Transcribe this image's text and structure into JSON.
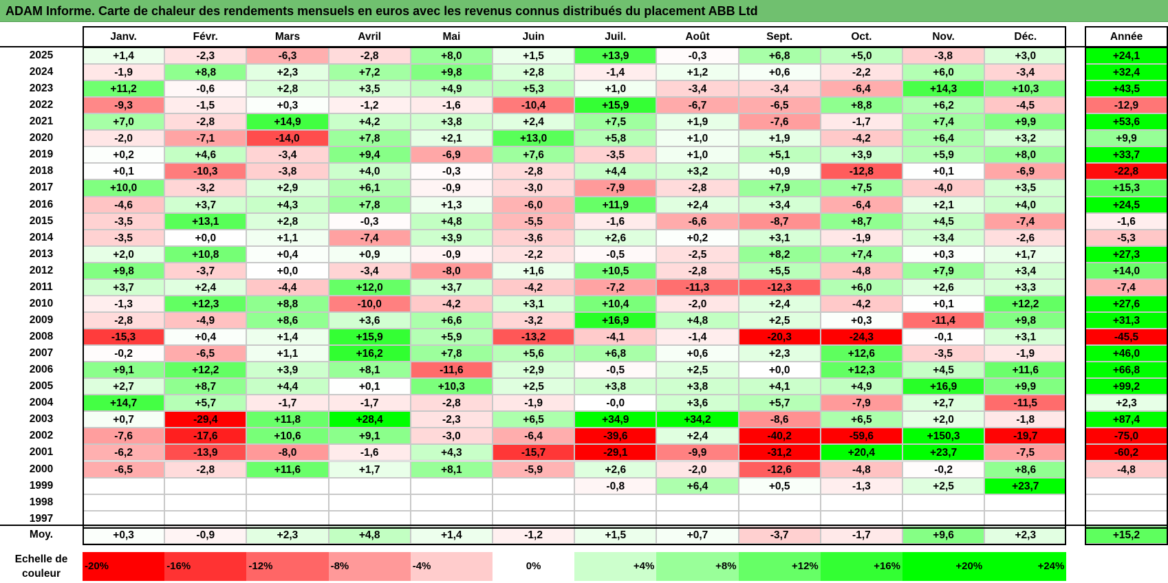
{
  "title": "ADAM Informe. Carte de chaleur des rendements mensuels en euros avec les revenus connus distribués du placement ABB Ltd",
  "chart_data": {
    "type": "heatmap",
    "title": "ADAM Informe. Carte de chaleur des rendements mensuels en euros avec les revenus connus distribués du placement ABB Ltd",
    "columns": [
      "Janv.",
      "Févr.",
      "Mars",
      "Avril",
      "Mai",
      "Juin",
      "Juil.",
      "Août",
      "Sept.",
      "Oct.",
      "Nov.",
      "Déc."
    ],
    "year_header": "Année",
    "rows": [
      {
        "label": "2025",
        "values": [
          1.4,
          -2.3,
          -6.3,
          -2.8,
          8.0,
          1.5,
          13.9,
          -0.3,
          6.8,
          5.0,
          -3.8,
          3.0
        ],
        "year": 24.1
      },
      {
        "label": "2024",
        "values": [
          -1.9,
          8.8,
          2.3,
          7.2,
          9.8,
          2.8,
          -1.4,
          1.2,
          0.6,
          -2.2,
          6.0,
          -3.4
        ],
        "year": 32.4
      },
      {
        "label": "2023",
        "values": [
          11.2,
          -0.6,
          2.8,
          3.5,
          4.9,
          5.3,
          1.0,
          -3.4,
          -3.4,
          -6.4,
          14.3,
          10.3
        ],
        "year": 43.5
      },
      {
        "label": "2022",
        "values": [
          -9.3,
          -1.5,
          0.3,
          -1.2,
          -1.6,
          -10.4,
          15.9,
          -6.7,
          -6.5,
          8.8,
          6.2,
          -4.5
        ],
        "year": -12.9
      },
      {
        "label": "2021",
        "values": [
          7.0,
          -2.8,
          14.9,
          4.2,
          3.8,
          2.4,
          7.5,
          1.9,
          -7.6,
          -1.7,
          7.4,
          9.9
        ],
        "year": 53.6
      },
      {
        "label": "2020",
        "values": [
          -2.0,
          -7.1,
          -14.0,
          7.8,
          2.1,
          13.0,
          5.8,
          1.0,
          1.9,
          -4.2,
          6.4,
          3.2
        ],
        "year": 9.9
      },
      {
        "label": "2019",
        "values": [
          0.2,
          4.6,
          -3.4,
          9.4,
          -6.9,
          7.6,
          -3.5,
          1.0,
          5.1,
          3.9,
          5.9,
          8.0
        ],
        "year": 33.7
      },
      {
        "label": "2018",
        "values": [
          0.1,
          -10.3,
          -3.8,
          4.0,
          -0.3,
          -2.8,
          4.4,
          3.2,
          0.9,
          -12.8,
          0.1,
          -6.9
        ],
        "year": -22.8
      },
      {
        "label": "2017",
        "values": [
          10.0,
          -3.2,
          2.9,
          6.1,
          -0.9,
          -3.0,
          -7.9,
          -2.8,
          7.9,
          7.5,
          -4.0,
          3.5
        ],
        "year": 15.3
      },
      {
        "label": "2016",
        "values": [
          -4.6,
          3.7,
          4.3,
          7.8,
          1.3,
          -6.0,
          11.9,
          2.4,
          3.4,
          -6.4,
          2.1,
          4.0
        ],
        "year": 24.5
      },
      {
        "label": "2015",
        "values": [
          -3.5,
          13.1,
          2.8,
          -0.3,
          4.8,
          -5.5,
          -1.6,
          -6.6,
          -8.7,
          8.7,
          4.5,
          -7.4
        ],
        "year": -1.6
      },
      {
        "label": "2014",
        "values": [
          -3.5,
          0.0,
          1.1,
          -7.4,
          3.9,
          -3.6,
          2.6,
          0.2,
          3.1,
          -1.9,
          3.4,
          -2.6
        ],
        "year": -5.3
      },
      {
        "label": "2013",
        "values": [
          2.0,
          10.8,
          0.4,
          0.9,
          -0.9,
          -2.2,
          -0.5,
          -2.5,
          8.2,
          7.4,
          0.3,
          1.7
        ],
        "year": 27.3
      },
      {
        "label": "2012",
        "values": [
          9.8,
          -3.7,
          0.0,
          -3.4,
          -8.0,
          1.6,
          10.5,
          -2.8,
          5.5,
          -4.8,
          7.9,
          3.4
        ],
        "year": 14.0
      },
      {
        "label": "2011",
        "values": [
          3.7,
          2.4,
          -4.4,
          12.0,
          3.7,
          -4.2,
          -7.2,
          -11.3,
          -12.3,
          6.0,
          2.6,
          3.3
        ],
        "year": -7.4
      },
      {
        "label": "2010",
        "values": [
          -1.3,
          12.3,
          8.8,
          -10.0,
          -4.2,
          3.1,
          10.4,
          -2.0,
          2.4,
          -4.2,
          0.1,
          12.2
        ],
        "year": 27.6
      },
      {
        "label": "2009",
        "values": [
          -2.8,
          -4.9,
          8.6,
          3.6,
          6.6,
          -3.2,
          16.9,
          4.8,
          2.5,
          0.3,
          -11.4,
          9.8
        ],
        "year": 31.3
      },
      {
        "label": "2008",
        "values": [
          -15.3,
          0.4,
          1.4,
          15.9,
          5.9,
          -13.2,
          -4.1,
          -1.4,
          -20.3,
          -24.3,
          -0.1,
          3.1
        ],
        "year": -45.5
      },
      {
        "label": "2007",
        "values": [
          -0.2,
          -6.5,
          1.1,
          16.2,
          7.8,
          5.6,
          6.8,
          0.6,
          2.3,
          12.6,
          -3.5,
          -1.9
        ],
        "year": 46.0
      },
      {
        "label": "2006",
        "values": [
          9.1,
          12.2,
          3.9,
          8.1,
          -11.6,
          2.9,
          -0.5,
          2.5,
          0.0,
          12.3,
          4.5,
          11.6
        ],
        "year": 66.8
      },
      {
        "label": "2005",
        "values": [
          2.7,
          8.7,
          4.4,
          0.1,
          10.3,
          2.5,
          3.8,
          3.8,
          4.1,
          4.9,
          16.9,
          9.9
        ],
        "year": 99.2
      },
      {
        "label": "2004",
        "values": [
          14.7,
          5.7,
          -1.7,
          -1.7,
          -2.8,
          -1.9,
          -0.0,
          3.6,
          5.7,
          -7.9,
          2.7,
          -11.5
        ],
        "year": 2.3
      },
      {
        "label": "2003",
        "values": [
          0.7,
          -29.4,
          11.8,
          28.4,
          -2.3,
          6.5,
          34.9,
          34.2,
          -8.6,
          6.5,
          2.0,
          -1.8
        ],
        "year": 87.4
      },
      {
        "label": "2002",
        "values": [
          -7.6,
          -17.6,
          10.6,
          9.1,
          -3.0,
          -6.4,
          -39.6,
          2.4,
          -40.2,
          -59.6,
          150.3,
          -19.7
        ],
        "year": -75.0
      },
      {
        "label": "2001",
        "values": [
          -6.2,
          -13.9,
          -8.0,
          -1.6,
          4.3,
          -15.7,
          -29.1,
          -9.9,
          -31.2,
          20.4,
          23.7,
          -7.5
        ],
        "year": -60.2
      },
      {
        "label": "2000",
        "values": [
          -6.5,
          -2.8,
          11.6,
          1.7,
          8.1,
          -5.9,
          2.6,
          -2.0,
          -12.6,
          -4.8,
          -0.2,
          8.6
        ],
        "year": -4.8
      },
      {
        "label": "1999",
        "values": [
          null,
          null,
          null,
          null,
          null,
          null,
          -0.8,
          6.4,
          0.5,
          -1.3,
          2.5,
          23.7
        ],
        "year": null
      },
      {
        "label": "1998",
        "values": [
          null,
          null,
          null,
          null,
          null,
          null,
          null,
          null,
          null,
          null,
          null,
          null
        ],
        "year": null
      },
      {
        "label": "1997",
        "values": [
          null,
          null,
          null,
          null,
          null,
          null,
          null,
          null,
          null,
          null,
          null,
          null
        ],
        "year": null
      }
    ],
    "average": {
      "label": "Moy.",
      "values": [
        0.3,
        -0.9,
        2.3,
        4.8,
        1.4,
        -1.2,
        1.5,
        0.7,
        -3.7,
        -1.7,
        9.6,
        2.3
      ],
      "year": 15.2
    },
    "scale": {
      "label": "Echelle de couleur",
      "steps": [
        {
          "label": "-20%",
          "color": "#ff0000"
        },
        {
          "label": "-16%",
          "color": "#ff3333"
        },
        {
          "label": "-12%",
          "color": "#ff6666"
        },
        {
          "label": "-8%",
          "color": "#ff9999"
        },
        {
          "label": "-4%",
          "color": "#ffcccc"
        },
        {
          "label": "0%",
          "color": "#ffffff"
        },
        {
          "label": "+4%",
          "color": "#ccffcc"
        },
        {
          "label": "+8%",
          "color": "#99ff99"
        },
        {
          "label": "+12%",
          "color": "#66ff66"
        },
        {
          "label": "+16%",
          "color": "#33ff33"
        },
        {
          "label": "+20%",
          "color": "#00ff00"
        },
        {
          "label": "+24%",
          "color": "#00ff00"
        }
      ]
    },
    "colors": {
      "negative": "#ff0000",
      "positive": "#00ff00",
      "neutral": "#ffffff",
      "title_bg": "#70c06f"
    }
  }
}
